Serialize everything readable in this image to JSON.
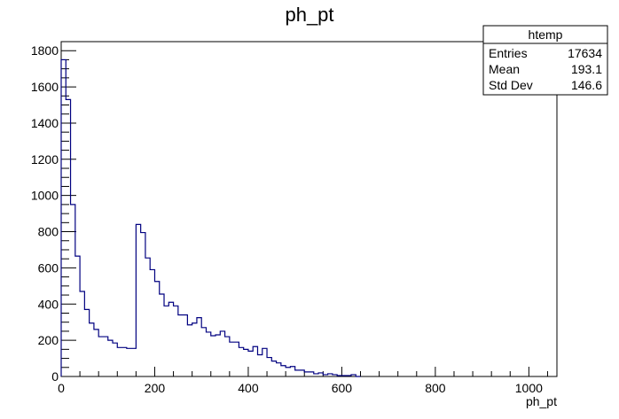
{
  "chart_data": {
    "type": "histogram",
    "title": "ph_pt",
    "xlabel": "ph_pt",
    "ylabel": "",
    "xlim": [
      0,
      1060
    ],
    "ylim": [
      0,
      1850
    ],
    "bin_width": 10,
    "x_ticks": [
      0,
      200,
      400,
      600,
      800,
      1000
    ],
    "y_ticks": [
      0,
      200,
      400,
      600,
      800,
      1000,
      1200,
      1400,
      1600,
      1800
    ],
    "bins": [
      {
        "x": 0,
        "y": 1750
      },
      {
        "x": 10,
        "y": 1530
      },
      {
        "x": 20,
        "y": 950
      },
      {
        "x": 30,
        "y": 665
      },
      {
        "x": 40,
        "y": 470
      },
      {
        "x": 50,
        "y": 370
      },
      {
        "x": 60,
        "y": 295
      },
      {
        "x": 70,
        "y": 260
      },
      {
        "x": 80,
        "y": 220
      },
      {
        "x": 90,
        "y": 220
      },
      {
        "x": 100,
        "y": 200
      },
      {
        "x": 110,
        "y": 185
      },
      {
        "x": 120,
        "y": 160
      },
      {
        "x": 130,
        "y": 160
      },
      {
        "x": 140,
        "y": 155
      },
      {
        "x": 150,
        "y": 155
      },
      {
        "x": 160,
        "y": 840
      },
      {
        "x": 170,
        "y": 795
      },
      {
        "x": 180,
        "y": 655
      },
      {
        "x": 190,
        "y": 590
      },
      {
        "x": 200,
        "y": 525
      },
      {
        "x": 210,
        "y": 455
      },
      {
        "x": 220,
        "y": 390
      },
      {
        "x": 230,
        "y": 410
      },
      {
        "x": 240,
        "y": 390
      },
      {
        "x": 250,
        "y": 340
      },
      {
        "x": 260,
        "y": 340
      },
      {
        "x": 270,
        "y": 285
      },
      {
        "x": 280,
        "y": 295
      },
      {
        "x": 290,
        "y": 325
      },
      {
        "x": 300,
        "y": 270
      },
      {
        "x": 310,
        "y": 245
      },
      {
        "x": 320,
        "y": 225
      },
      {
        "x": 330,
        "y": 230
      },
      {
        "x": 340,
        "y": 250
      },
      {
        "x": 350,
        "y": 220
      },
      {
        "x": 360,
        "y": 190
      },
      {
        "x": 370,
        "y": 190
      },
      {
        "x": 380,
        "y": 160
      },
      {
        "x": 390,
        "y": 150
      },
      {
        "x": 400,
        "y": 140
      },
      {
        "x": 410,
        "y": 165
      },
      {
        "x": 420,
        "y": 120
      },
      {
        "x": 430,
        "y": 155
      },
      {
        "x": 440,
        "y": 105
      },
      {
        "x": 450,
        "y": 85
      },
      {
        "x": 460,
        "y": 75
      },
      {
        "x": 470,
        "y": 60
      },
      {
        "x": 480,
        "y": 50
      },
      {
        "x": 490,
        "y": 55
      },
      {
        "x": 500,
        "y": 35
      },
      {
        "x": 510,
        "y": 35
      },
      {
        "x": 520,
        "y": 25
      },
      {
        "x": 530,
        "y": 25
      },
      {
        "x": 540,
        "y": 15
      },
      {
        "x": 550,
        "y": 20
      },
      {
        "x": 560,
        "y": 10
      },
      {
        "x": 570,
        "y": 15
      },
      {
        "x": 580,
        "y": 10
      },
      {
        "x": 590,
        "y": 5
      },
      {
        "x": 600,
        "y": 5
      },
      {
        "x": 610,
        "y": 5
      },
      {
        "x": 620,
        "y": 10
      },
      {
        "x": 630,
        "y": 0
      }
    ],
    "line_color": "#000080",
    "stats_box": {
      "title": "htemp",
      "rows": [
        {
          "label": "Entries",
          "value": "17634"
        },
        {
          "label": "Mean",
          "value": "193.1"
        },
        {
          "label": "Std Dev",
          "value": "146.6"
        }
      ]
    }
  }
}
